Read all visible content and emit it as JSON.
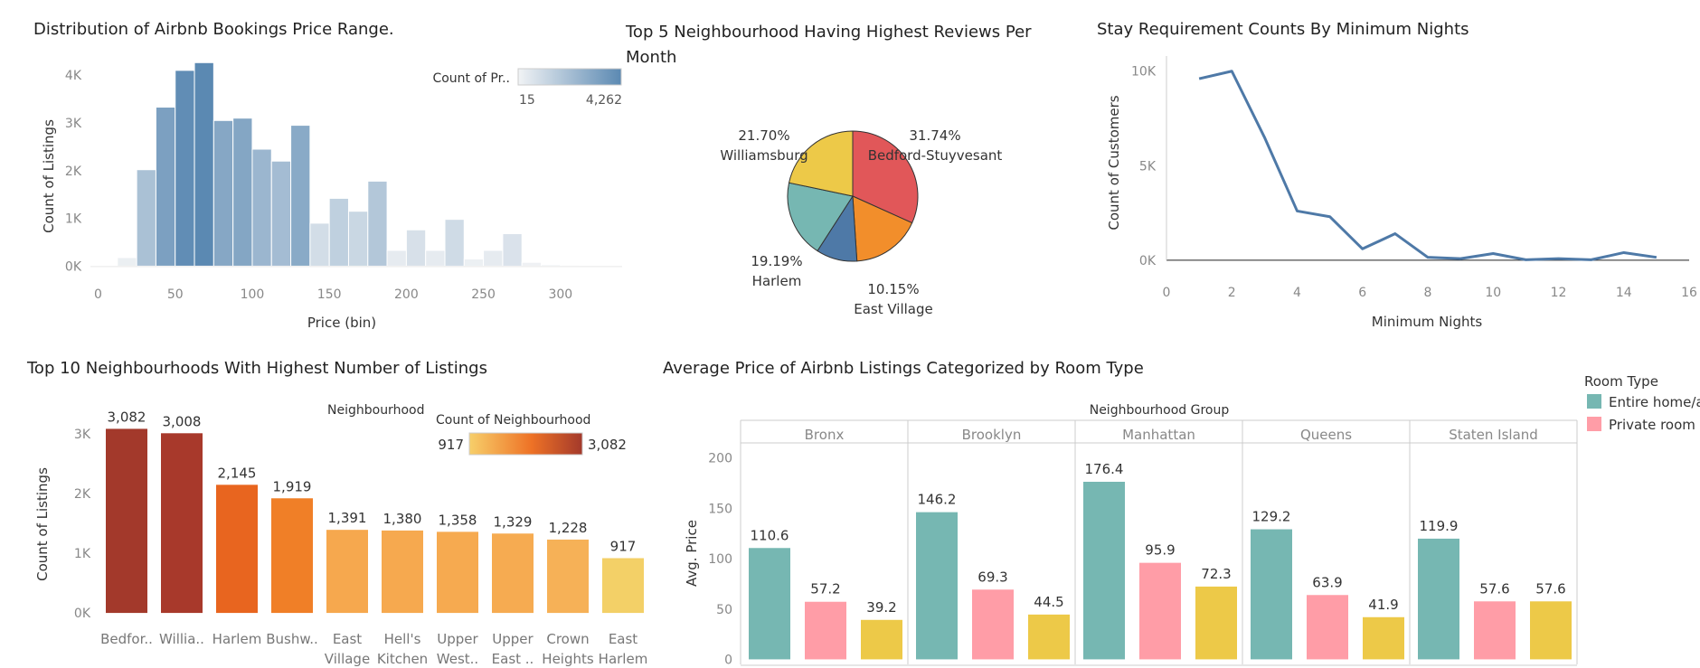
{
  "chart_data": [
    {
      "type": "bar",
      "title": "Distribution of Airbnb Bookings Price Range.",
      "xlabel": "Price (bin)",
      "ylabel": "Count of Listings",
      "x_ticks": [
        "0",
        "50",
        "100",
        "150",
        "200",
        "250",
        "300"
      ],
      "y_ticks": [
        "0K",
        "1K",
        "2K",
        "3K",
        "4K"
      ],
      "bin_width": 12.5,
      "xlim": [
        -5,
        340
      ],
      "ylim": [
        -200,
        4400
      ],
      "bins": [
        0,
        12.5,
        25,
        37.5,
        50,
        62.5,
        75,
        87.5,
        100,
        112.5,
        125,
        137.5,
        150,
        162.5,
        175,
        187.5,
        200,
        212.5,
        225,
        237.5,
        250,
        262.5,
        275,
        287.5,
        300,
        312.5,
        325
      ],
      "values": [
        15,
        180,
        2020,
        3330,
        4100,
        4262,
        3050,
        3100,
        2450,
        2200,
        2950,
        900,
        1420,
        1150,
        1780,
        330,
        760,
        330,
        980,
        150,
        330,
        680,
        80,
        30,
        20,
        15,
        15
      ],
      "legend": {
        "title": "Count of Pr..",
        "min": "15",
        "max": "4,262",
        "position": "top-right"
      },
      "colors": {
        "low": "#f1f3f5",
        "high": "#5b89b2"
      }
    },
    {
      "type": "pie",
      "title": "Top 5 Neighbourhood Having Highest Reviews Per Month",
      "slices": [
        {
          "label": "Bedford-Stuyvesant",
          "percent_label": "31.74%",
          "value": 31.74,
          "color": "#e15759"
        },
        {
          "label": "",
          "percent_label": "",
          "value": 17.22,
          "color": "#f28e2b"
        },
        {
          "label": "East Village",
          "percent_label": "10.15%",
          "value": 10.15,
          "color": "#4e79a7"
        },
        {
          "label": "Harlem",
          "percent_label": "19.19%",
          "value": 19.19,
          "color": "#76b7b2"
        },
        {
          "label": "Williamsburg",
          "percent_label": "21.70%",
          "value": 21.7,
          "color": "#edc948"
        }
      ]
    },
    {
      "type": "line",
      "title": "Stay Requirement Counts By Minimum Nights",
      "xlabel": "Minimum Nights",
      "ylabel": "Count of Customers",
      "x_ticks": [
        "0",
        "2",
        "4",
        "6",
        "8",
        "10",
        "12",
        "14",
        "16"
      ],
      "y_ticks": [
        "0K",
        "5K",
        "10K"
      ],
      "xlim": [
        0,
        16
      ],
      "ylim": [
        -200,
        10800
      ],
      "x": [
        1,
        2,
        3,
        4,
        5,
        6,
        7,
        8,
        9,
        10,
        11,
        12,
        13,
        14,
        15
      ],
      "y": [
        9600,
        10000,
        6500,
        2600,
        2300,
        600,
        1400,
        150,
        80,
        350,
        20,
        80,
        20,
        400,
        150
      ],
      "color": "#4e79a7"
    },
    {
      "type": "bar",
      "title": "Top 10 Neighbourhoods With Highest Number of Listings",
      "ylabel": "Count of Listings",
      "y_ticks": [
        "0K",
        "1K",
        "2K",
        "3K"
      ],
      "ylim": [
        -150,
        3300
      ],
      "categories": [
        [
          "Bedfor.."
        ],
        [
          "Willia.."
        ],
        [
          "Harlem"
        ],
        [
          "Bushw.."
        ],
        [
          "East",
          "Village"
        ],
        [
          "Hell's",
          "Kitchen"
        ],
        [
          "Upper",
          "West.."
        ],
        [
          "Upper",
          "East .."
        ],
        [
          "Crown",
          "Heights"
        ],
        [
          "East",
          "Harlem"
        ]
      ],
      "values": [
        3082,
        3008,
        2145,
        1919,
        1391,
        1380,
        1358,
        1329,
        1228,
        917
      ],
      "value_labels": [
        "3,082",
        "3,008",
        "2,145",
        "1,919",
        "1,391",
        "1,380",
        "1,358",
        "1,329",
        "1,228",
        "917"
      ],
      "colors": [
        "#a3392b",
        "#a8392b",
        "#e8651f",
        "#f07f27",
        "#f6a84e",
        "#f6a94f",
        "#f6aa50",
        "#f6ab51",
        "#f6b157",
        "#f3d067"
      ],
      "legend": {
        "title_color": "Neighbourhood",
        "title_scale": "Count of Neighbourhood",
        "min": "917",
        "max": "3,082",
        "low": "#f7cf6a",
        "mid": "#ee7226",
        "high": "#a3392b",
        "position": "top-right"
      }
    },
    {
      "type": "bar",
      "title": "Average Price of Airbnb Listings Categorized by Room Type",
      "column_header": "Neighbourhood Group",
      "ylabel": "Avg. Price",
      "y_ticks": [
        "0",
        "50",
        "100",
        "150",
        "200"
      ],
      "ylim": [
        -5,
        215
      ],
      "groups": [
        "Bronx",
        "Brooklyn",
        "Manhattan",
        "Queens",
        "Staten Island"
      ],
      "series": [
        {
          "name": "Entire home/apt",
          "color": "#76b7b2",
          "values": [
            110.6,
            146.2,
            176.4,
            129.2,
            119.9
          ],
          "labels": [
            "110.6",
            "146.2",
            "176.4",
            "129.2",
            "119.9"
          ]
        },
        {
          "name": "Private room",
          "color": "#ff9da7",
          "values": [
            57.2,
            69.3,
            95.9,
            63.9,
            57.6
          ],
          "labels": [
            "57.2",
            "69.3",
            "95.9",
            "63.9",
            "57.6"
          ]
        },
        {
          "name": "",
          "color": "#edc948",
          "values": [
            39.2,
            44.5,
            72.3,
            41.9,
            57.6
          ],
          "labels": [
            "39.2",
            "44.5",
            "72.3",
            "41.9",
            "57.6"
          ]
        }
      ],
      "legend": {
        "title": "Room Type",
        "position": "right",
        "entries": [
          "Entire home/apt",
          "Private room"
        ]
      }
    }
  ]
}
